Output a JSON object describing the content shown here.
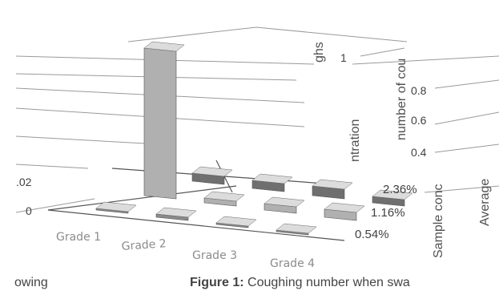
{
  "chart_data": {
    "type": "bar",
    "categories": [
      "Grade 1",
      "Grade 2",
      "Grade 3",
      "Grade 4"
    ],
    "depth_categories": [
      "0.54%",
      "1.16%",
      "2.36%"
    ],
    "z_ticks": [
      "0.4",
      "0.6",
      "0.8",
      "1"
    ],
    "left_ticks": [
      "0",
      ".02"
    ],
    "axis_label_top": "ghs",
    "axis_label_right_fragment": "number of cou",
    "axis_label_center": "ntration",
    "axis_label_depth": "Sample conc",
    "axis_label_average": "Average",
    "series": [
      {
        "name": "2.36%",
        "values": [
          0.05,
          0.05,
          0.06,
          0.04
        ]
      },
      {
        "name": "1.16%",
        "values": [
          0.92,
          0.03,
          0.04,
          0.05
        ]
      },
      {
        "name": "0.54%",
        "values": [
          0.01,
          0.02,
          0.01,
          0.01
        ]
      }
    ],
    "zlim": [
      0,
      1
    ]
  },
  "caption": {
    "left": "owing",
    "figure_label": "Figure 1:",
    "figure_text": " Coughing number when swa"
  }
}
